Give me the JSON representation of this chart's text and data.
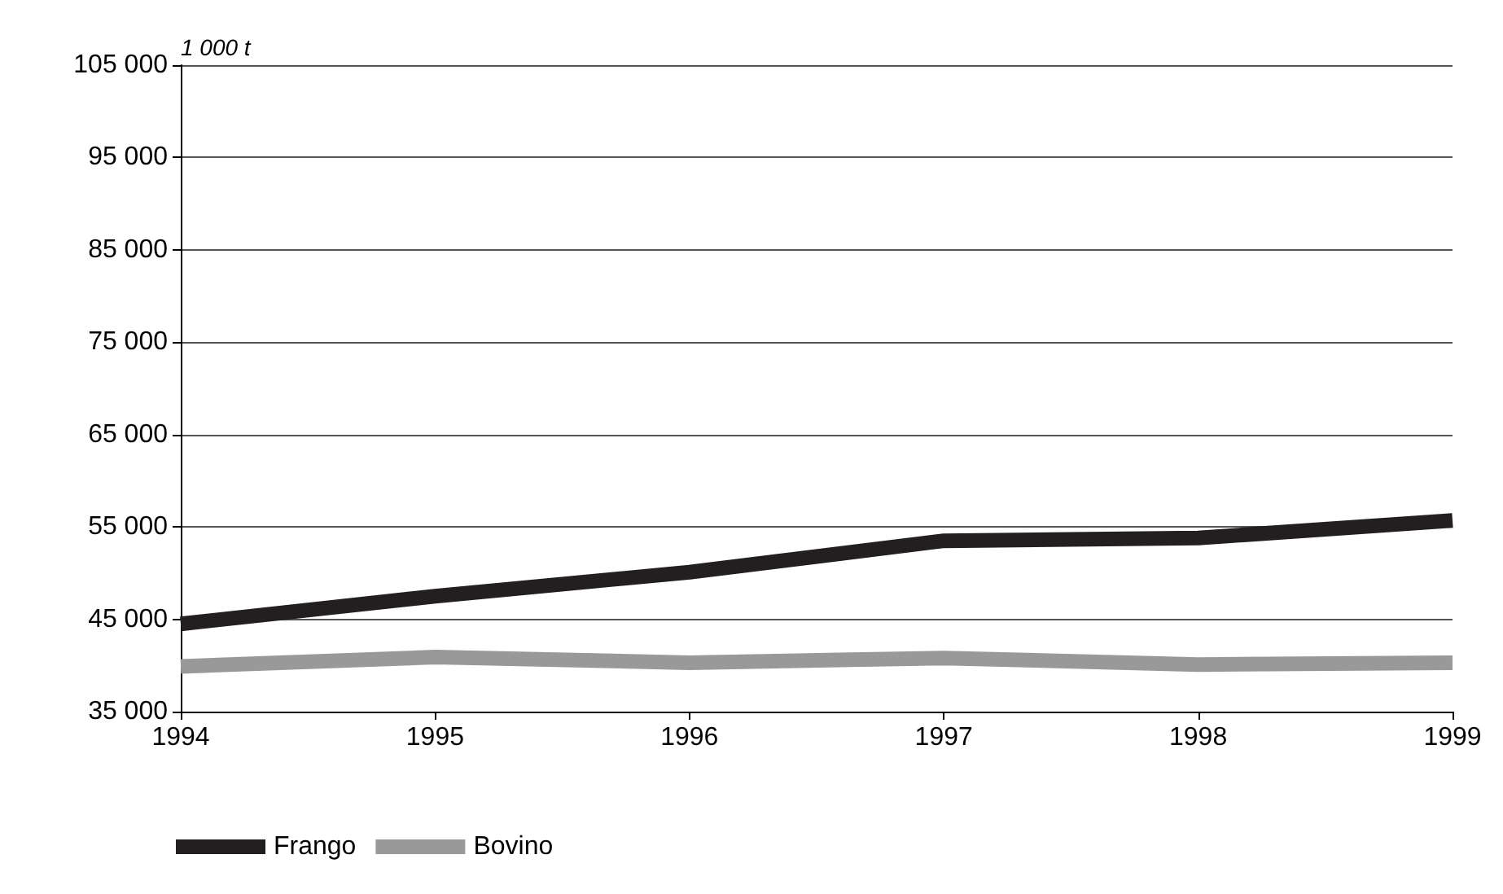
{
  "chart_data": {
    "type": "line",
    "ylabel": "1 000 t",
    "categories": [
      "1994",
      "1995",
      "1996",
      "1997",
      "1998",
      "1999"
    ],
    "series": [
      {
        "name": "Frango",
        "color": "#231f20",
        "values": [
          44500,
          47500,
          50100,
          53500,
          53800,
          55700
        ]
      },
      {
        "name": "Bovino",
        "color": "#999999",
        "values": [
          39900,
          40900,
          40300,
          40800,
          40100,
          40300
        ]
      }
    ],
    "ylim": [
      35000,
      105000
    ],
    "yticks": [
      {
        "value": 35000,
        "label": "35 000"
      },
      {
        "value": 45000,
        "label": "45 000"
      },
      {
        "value": 55000,
        "label": "55 000"
      },
      {
        "value": 65000,
        "label": "65 000"
      },
      {
        "value": 75000,
        "label": "75 000"
      },
      {
        "value": 85000,
        "label": "85 000"
      },
      {
        "value": 95000,
        "label": "95 000"
      },
      {
        "value": 105000,
        "label": "105 000"
      }
    ],
    "grid": "y",
    "legend": "bottom left",
    "marker": "none",
    "line_style": "solid"
  }
}
